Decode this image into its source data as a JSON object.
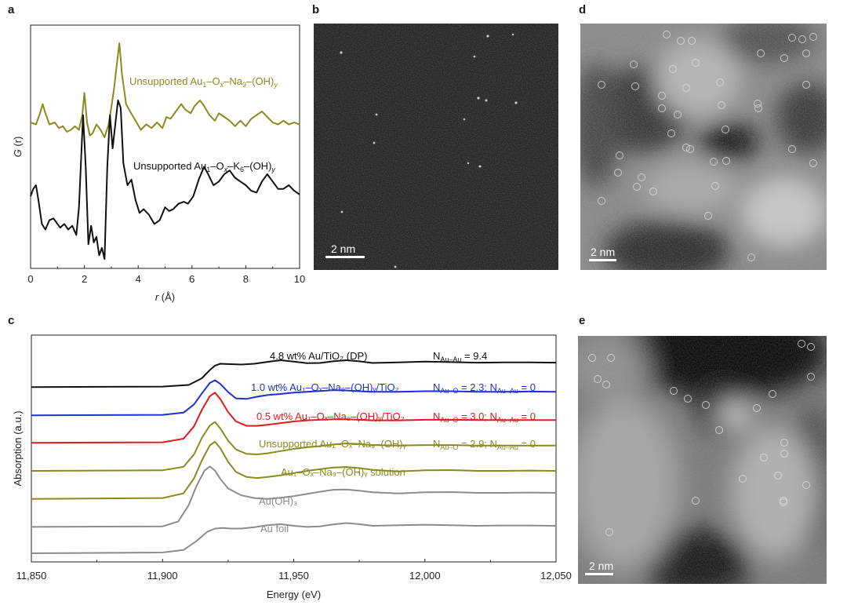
{
  "panels": {
    "a": {
      "letter": "a"
    },
    "b": {
      "letter": "b",
      "scale": "2 nm"
    },
    "c": {
      "letter": "c"
    },
    "d": {
      "letter": "d",
      "scale": "2 nm"
    },
    "e": {
      "letter": "e",
      "scale": "2 nm"
    }
  },
  "chart_data": [
    {
      "type": "line",
      "panel": "a",
      "xlabel_var": "r",
      "xlabel_unit": "(Å)",
      "ylabel_var": "G",
      "ylabel_arg": "(r)",
      "xlim": [
        0,
        10
      ],
      "x_ticks": [
        "0",
        "2",
        "4",
        "6",
        "8",
        "10"
      ],
      "series": [
        {
          "name": "Unsupported Au1–Ox–Na9–(OH)y",
          "label": {
            "pre": "Unsupported Au",
            "s1": "1",
            "m1": "–O",
            "s2": "x",
            "m2": "–Na",
            "s3": "9",
            "m3": "–(OH)",
            "s4": "y"
          },
          "color": "#8a8a1e",
          "x": [
            0,
            0.2,
            0.35,
            0.45,
            0.55,
            0.7,
            0.9,
            1.05,
            1.2,
            1.35,
            1.5,
            1.65,
            1.8,
            1.92,
            2.0,
            2.1,
            2.2,
            2.3,
            2.45,
            2.6,
            2.75,
            2.9,
            3.0,
            3.1,
            3.2,
            3.3,
            3.4,
            3.55,
            3.7,
            3.9,
            4.1,
            4.3,
            4.5,
            4.7,
            4.9,
            5.05,
            5.2,
            5.4,
            5.6,
            5.75,
            5.95,
            6.1,
            6.3,
            6.45,
            6.65,
            6.85,
            7.0,
            7.2,
            7.4,
            7.6,
            7.8,
            8.0,
            8.2,
            8.4,
            8.6,
            8.8,
            9.0,
            9.2,
            9.4,
            9.6,
            9.8,
            10.0
          ],
          "y": [
            0.74,
            0.73,
            0.79,
            0.84,
            0.79,
            0.73,
            0.74,
            0.71,
            0.72,
            0.69,
            0.7,
            0.72,
            0.7,
            0.78,
            0.9,
            0.74,
            0.67,
            0.68,
            0.73,
            0.7,
            0.66,
            0.73,
            0.82,
            0.92,
            1.05,
            1.17,
            1.0,
            0.84,
            0.8,
            0.75,
            0.7,
            0.73,
            0.71,
            0.74,
            0.71,
            0.77,
            0.76,
            0.8,
            0.84,
            0.81,
            0.79,
            0.83,
            0.86,
            0.83,
            0.78,
            0.75,
            0.79,
            0.77,
            0.75,
            0.72,
            0.75,
            0.72,
            0.76,
            0.78,
            0.8,
            0.77,
            0.74,
            0.73,
            0.75,
            0.73,
            0.74,
            0.73
          ]
        },
        {
          "name": "Unsupported Au1–Ox–K6–(OH)y",
          "label": {
            "pre": "Unsupported Au",
            "s1": "1",
            "m1": "–O",
            "s2": "x",
            "m2": "–K",
            "s3": "6",
            "m3": "–(OH)",
            "s4": "y"
          },
          "color": "#111111",
          "x": [
            0,
            0.1,
            0.2,
            0.3,
            0.42,
            0.55,
            0.7,
            0.85,
            0.95,
            1.1,
            1.25,
            1.4,
            1.55,
            1.7,
            1.8,
            1.95,
            2.05,
            2.15,
            2.25,
            2.35,
            2.45,
            2.55,
            2.65,
            2.75,
            2.85,
            2.95,
            3.05,
            3.15,
            3.25,
            3.35,
            3.45,
            3.6,
            3.75,
            3.9,
            4.05,
            4.2,
            4.4,
            4.6,
            4.8,
            5.0,
            5.15,
            5.3,
            5.5,
            5.7,
            5.85,
            6.05,
            6.25,
            6.45,
            6.6,
            6.8,
            7.0,
            7.2,
            7.4,
            7.6,
            7.8,
            8.0,
            8.2,
            8.4,
            8.6,
            8.8,
            9.0,
            9.2,
            9.4,
            9.6,
            9.8,
            10.0
          ],
          "y": [
            0.34,
            0.38,
            0.4,
            0.31,
            0.19,
            0.16,
            0.21,
            0.22,
            0.2,
            0.17,
            0.19,
            0.16,
            0.18,
            0.13,
            0.28,
            0.78,
            0.5,
            0.08,
            0.18,
            0.09,
            0.12,
            0.02,
            0.06,
            0.0,
            0.5,
            0.78,
            0.6,
            0.73,
            0.86,
            0.82,
            0.52,
            0.4,
            0.43,
            0.32,
            0.25,
            0.27,
            0.24,
            0.19,
            0.21,
            0.28,
            0.26,
            0.27,
            0.3,
            0.31,
            0.3,
            0.34,
            0.43,
            0.5,
            0.46,
            0.4,
            0.42,
            0.46,
            0.48,
            0.44,
            0.42,
            0.4,
            0.37,
            0.36,
            0.42,
            0.46,
            0.42,
            0.38,
            0.38,
            0.4,
            0.37,
            0.35
          ]
        }
      ]
    },
    {
      "type": "line",
      "panel": "c",
      "xlabel": "Energy (eV)",
      "ylabel": "Absorption (a.u.)",
      "xlim": [
        11850,
        12050
      ],
      "x_ticks": [
        "11,850",
        "11,900",
        "11,950",
        "12,000",
        "12,050"
      ],
      "series": [
        {
          "name": "4.8 wt% Au/TiO2 (DP)",
          "label": "4.8 wt% Au/TiO₂ (DP)",
          "annotation": "N_Au–Au = 9.4",
          "n_values": [
            "9.4"
          ],
          "color": "#111111",
          "offset": 6.05,
          "x": [
            11850,
            11900,
            11910,
            11915,
            11918,
            11920,
            11922,
            11925,
            11930,
            11935,
            11940,
            11945,
            11950,
            11955,
            11960,
            11965,
            11970,
            11975,
            11980,
            11990,
            12000,
            12010,
            12020,
            12030,
            12040,
            12050
          ],
          "y": [
            0.0,
            0.02,
            0.08,
            0.32,
            0.62,
            0.78,
            0.85,
            0.84,
            0.82,
            0.85,
            0.92,
            0.98,
            0.93,
            0.87,
            0.88,
            0.94,
            0.98,
            0.94,
            0.88,
            0.9,
            0.93,
            0.91,
            0.89,
            0.9,
            0.9,
            0.89
          ]
        },
        {
          "name": "1.0 wt% Au1–Ox–Na9–(OH)y/TiO2",
          "label": "1.0 wt% Au₁–Oₓ–Na₉–(OH)ᵧ/TiO₂",
          "annotation": "N_Au–O = 2.3; N_Au–Au = 0",
          "n_values": [
            "2.3",
            "0"
          ],
          "color": "#1d2fd6",
          "offset": 5.02,
          "x": [
            11850,
            11900,
            11908,
            11912,
            11915,
            11918,
            11920,
            11922,
            11925,
            11928,
            11932,
            11936,
            11940,
            11945,
            11950,
            11955,
            11960,
            11965,
            11970,
            11975,
            11980,
            11990,
            12000,
            12010,
            12020,
            12030,
            12040,
            12050
          ],
          "y": [
            0.0,
            0.02,
            0.1,
            0.4,
            0.8,
            1.18,
            1.28,
            1.15,
            0.85,
            0.62,
            0.6,
            0.68,
            0.74,
            0.78,
            0.83,
            0.86,
            0.89,
            0.92,
            0.91,
            0.88,
            0.86,
            0.86,
            0.88,
            0.88,
            0.86,
            0.86,
            0.87,
            0.86
          ]
        },
        {
          "name": "0.5 wt% Au1–Ox–Na9–(OH)y/TiO2",
          "label": "0.5 wt% Au₁–Oₓ–Na₉–(OH)ᵧ/TiO₂",
          "annotation": "N_Au–O = 3.0; N_Au–Au = 0",
          "n_values": [
            "3.0",
            "0"
          ],
          "color": "#e01a1a",
          "offset": 4.02,
          "x": [
            11850,
            11900,
            11908,
            11912,
            11915,
            11918,
            11920,
            11922,
            11925,
            11928,
            11932,
            11936,
            11940,
            11945,
            11950,
            11955,
            11960,
            11965,
            11970,
            11975,
            11980,
            11990,
            12000,
            12010,
            12020,
            12030,
            12040,
            12050
          ],
          "y": [
            0.0,
            0.02,
            0.15,
            0.6,
            1.2,
            1.7,
            1.83,
            1.6,
            1.12,
            0.78,
            0.62,
            0.62,
            0.66,
            0.72,
            0.78,
            0.82,
            0.84,
            0.86,
            0.86,
            0.84,
            0.82,
            0.82,
            0.84,
            0.84,
            0.83,
            0.83,
            0.83,
            0.83
          ]
        },
        {
          "name": "Unsupported Au1–Ox–Na9–(OH)y",
          "label": "Unsupported Au₁–Oₓ–Na₉–(OH)ᵧ",
          "annotation": "N_Au–O = 2.9; N_Au–Au = 0",
          "n_values": [
            "2.9",
            "0"
          ],
          "color": "#8a8a1e",
          "offset": 3.0,
          "x": [
            11850,
            11900,
            11908,
            11912,
            11915,
            11918,
            11920,
            11922,
            11925,
            11928,
            11932,
            11936,
            11940,
            11945,
            11950,
            11955,
            11960,
            11965,
            11970,
            11975,
            11980,
            11990,
            12000,
            12010,
            12020,
            12030,
            12040,
            12050
          ],
          "y": [
            0.0,
            0.02,
            0.15,
            0.6,
            1.2,
            1.65,
            1.78,
            1.55,
            1.1,
            0.78,
            0.62,
            0.6,
            0.64,
            0.72,
            0.8,
            0.86,
            0.9,
            0.96,
            1.0,
            0.98,
            0.94,
            0.92,
            0.94,
            0.94,
            0.92,
            0.92,
            0.92,
            0.92
          ]
        },
        {
          "name": "Au1–Ox–Na9–(OH)y solution",
          "label": "Au₁–Oₓ–Na₉–(OH)ᵧ solution",
          "color": "#8a8a1e",
          "offset": 1.98,
          "x": [
            11850,
            11900,
            11908,
            11912,
            11915,
            11918,
            11920,
            11922,
            11925,
            11928,
            11932,
            11936,
            11940,
            11945,
            11950,
            11955,
            11960,
            11965,
            11970,
            11975,
            11980,
            11990,
            12000,
            12010,
            12020,
            12030,
            12040,
            12050
          ],
          "y": [
            0.0,
            0.03,
            0.2,
            0.75,
            1.4,
            1.95,
            2.08,
            1.85,
            1.35,
            0.98,
            0.8,
            0.76,
            0.8,
            0.86,
            0.94,
            1.02,
            1.08,
            1.14,
            1.16,
            1.12,
            1.06,
            1.0,
            1.04,
            1.05,
            1.02,
            1.02,
            1.03,
            1.02
          ]
        },
        {
          "name": "Au(OH)3",
          "label": "Au(OH)₃",
          "color": "#8c8c8c",
          "offset": 0.96,
          "x": [
            11850,
            11900,
            11906,
            11910,
            11913,
            11916,
            11918,
            11920,
            11922,
            11925,
            11930,
            11935,
            11940,
            11945,
            11950,
            11955,
            11960,
            11965,
            11970,
            11975,
            11980,
            11990,
            12000,
            12010,
            12020,
            12030,
            12040,
            12050
          ],
          "y": [
            0.0,
            0.02,
            0.2,
            0.8,
            1.5,
            2.05,
            2.2,
            2.05,
            1.75,
            1.4,
            1.15,
            1.05,
            1.02,
            1.06,
            1.12,
            1.2,
            1.28,
            1.35,
            1.36,
            1.32,
            1.26,
            1.22,
            1.26,
            1.27,
            1.24,
            1.24,
            1.25,
            1.24
          ]
        },
        {
          "name": "Au foil",
          "label": "Au foil",
          "color": "#8c8c8c",
          "offset": 0.0,
          "x": [
            11850,
            11900,
            11908,
            11913,
            11917,
            11920,
            11923,
            11926,
            11930,
            11935,
            11940,
            11945,
            11950,
            11955,
            11960,
            11965,
            11970,
            11975,
            11980,
            11990,
            12000,
            12010,
            12020,
            12030,
            12040,
            12050
          ],
          "y": [
            0.0,
            0.03,
            0.12,
            0.45,
            0.78,
            0.9,
            0.92,
            0.9,
            0.9,
            0.95,
            1.02,
            1.06,
            1.0,
            0.96,
            0.98,
            1.05,
            1.1,
            1.06,
            1.0,
            1.02,
            1.04,
            1.02,
            1.0,
            1.01,
            1.01,
            1.0
          ]
        }
      ]
    }
  ]
}
